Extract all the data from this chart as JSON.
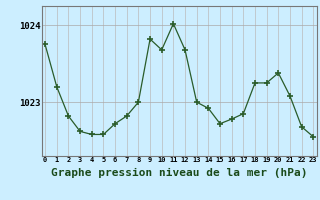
{
  "x": [
    0,
    1,
    2,
    3,
    4,
    5,
    6,
    7,
    8,
    9,
    10,
    11,
    12,
    13,
    14,
    15,
    16,
    17,
    18,
    19,
    20,
    21,
    22,
    23
  ],
  "y": [
    1023.75,
    1023.2,
    1022.82,
    1022.62,
    1022.58,
    1022.58,
    1022.72,
    1022.82,
    1023.0,
    1023.82,
    1023.68,
    1024.02,
    1023.68,
    1023.0,
    1022.92,
    1022.72,
    1022.78,
    1022.85,
    1023.25,
    1023.25,
    1023.38,
    1023.08,
    1022.68,
    1022.55
  ],
  "line_color": "#2a5c2a",
  "marker": "+",
  "marker_size": 4,
  "marker_lw": 1.2,
  "line_width": 0.9,
  "bg_color": "#cceeff",
  "grid_color_v": "#bbbbbb",
  "grid_color_h": "#aaaaaa",
  "title": "Graphe pression niveau de la mer (hPa)",
  "title_fontsize": 8,
  "ylabel_ticks": [
    1023,
    1024
  ],
  "ylim": [
    1022.3,
    1024.25
  ],
  "xlim": [
    -0.3,
    23.3
  ],
  "xticks": [
    0,
    1,
    2,
    3,
    4,
    5,
    6,
    7,
    8,
    9,
    10,
    11,
    12,
    13,
    14,
    15,
    16,
    17,
    18,
    19,
    20,
    21,
    22,
    23
  ],
  "xtick_labels": [
    "0",
    "1",
    "2",
    "3",
    "4",
    "5",
    "6",
    "7",
    "8",
    "9",
    "10",
    "11",
    "12",
    "13",
    "14",
    "15",
    "16",
    "17",
    "18",
    "19",
    "20",
    "21",
    "22",
    "23"
  ]
}
